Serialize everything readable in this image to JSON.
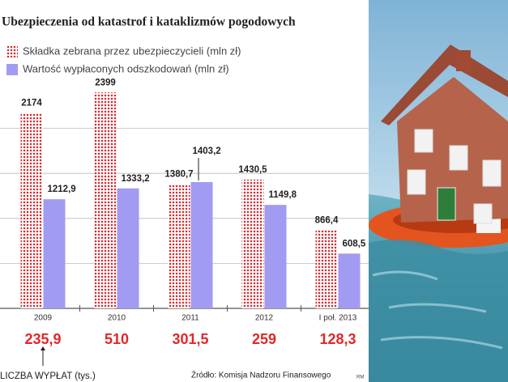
{
  "chart_data": {
    "type": "bar",
    "title": "Ubezpieczenia od katastrof i kataklizmów pogodowych",
    "categories": [
      "2009",
      "2010",
      "2011",
      "2012",
      "I poł. 2013"
    ],
    "series": [
      {
        "name": "Składka zebrana przez ubezpieczycieli (mln zł)",
        "color": "#d9262b",
        "pattern": "dots",
        "values": [
          2174,
          2399,
          1380.7,
          1430.5,
          866.4
        ],
        "value_labels": [
          "2174",
          "2399",
          "1380,7",
          "1430,5",
          "866,4"
        ]
      },
      {
        "name": "Wartość wypłaconych odszkodowań (mln zł)",
        "color": "#a29bf2",
        "values": [
          1212.9,
          1333.2,
          1403.2,
          1149.8,
          608.5
        ],
        "value_labels": [
          "1212,9",
          "1333,2",
          "1403,2",
          "1149,8",
          "608,5"
        ]
      }
    ],
    "ylim": [
      0,
      2500
    ],
    "yticks": [
      0,
      500,
      1000,
      1500,
      2000
    ],
    "grid": true,
    "claims": {
      "label": "LICZBA WYPŁAT (tys.)",
      "color": "#e3262a",
      "values": [
        235.9,
        510,
        301.5,
        259,
        128.3
      ],
      "value_labels": [
        "235,9",
        "510",
        "301,5",
        "259",
        "128,3"
      ]
    },
    "source": "Źródło: Komisja Nadzoru Finansowego",
    "credit": "RM"
  }
}
